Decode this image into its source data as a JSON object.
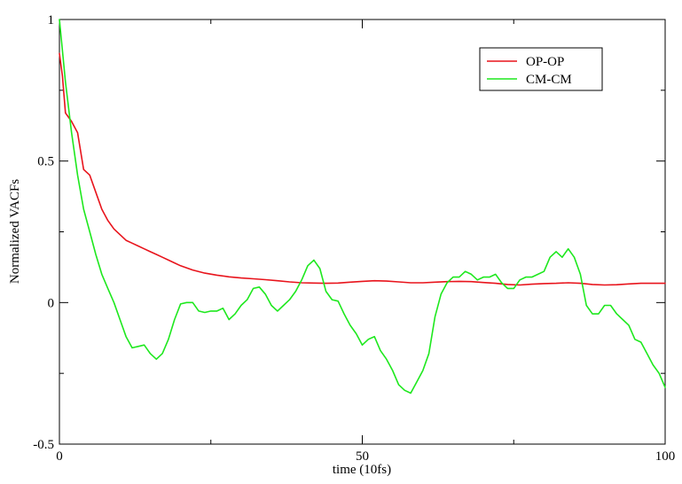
{
  "chart_data": {
    "type": "line",
    "title": "",
    "xlabel": "time (10fs)",
    "ylabel": "Normalized VACFs",
    "xlim": [
      0,
      100
    ],
    "ylim": [
      -0.5,
      1
    ],
    "xticks": [
      0,
      50,
      100
    ],
    "xtick_labels": [
      "0",
      "50",
      "100"
    ],
    "yticks": [
      -0.5,
      0,
      0.5,
      1
    ],
    "ytick_labels": [
      "-0.5",
      "0",
      "0.5",
      "1"
    ],
    "grid": false,
    "legend_position": "top-right",
    "series": [
      {
        "name": "OP-OP",
        "color": "#e8141c",
        "x": [
          0,
          0.5,
          1,
          2,
          3,
          4,
          5,
          6,
          7,
          8,
          9,
          10,
          11,
          12,
          13,
          14,
          15,
          16,
          17,
          18,
          19,
          20,
          22,
          24,
          26,
          28,
          30,
          32,
          34,
          36,
          38,
          40,
          42,
          44,
          46,
          48,
          50,
          52,
          54,
          56,
          58,
          60,
          62,
          64,
          66,
          68,
          70,
          72,
          74,
          76,
          78,
          80,
          82,
          84,
          86,
          88,
          90,
          92,
          94,
          96,
          98,
          100
        ],
        "values": [
          0.88,
          0.8,
          0.67,
          0.64,
          0.6,
          0.47,
          0.45,
          0.39,
          0.33,
          0.29,
          0.26,
          0.24,
          0.22,
          0.21,
          0.2,
          0.19,
          0.18,
          0.17,
          0.16,
          0.15,
          0.14,
          0.13,
          0.115,
          0.104,
          0.097,
          0.091,
          0.087,
          0.084,
          0.081,
          0.077,
          0.073,
          0.07,
          0.069,
          0.068,
          0.069,
          0.072,
          0.075,
          0.077,
          0.076,
          0.073,
          0.07,
          0.07,
          0.072,
          0.074,
          0.075,
          0.074,
          0.071,
          0.068,
          0.064,
          0.062,
          0.065,
          0.067,
          0.068,
          0.07,
          0.068,
          0.064,
          0.062,
          0.063,
          0.066,
          0.068,
          0.068,
          0.068
        ]
      },
      {
        "name": "CM-CM",
        "color": "#1ee81e",
        "x": [
          0,
          1,
          2,
          3,
          4,
          5,
          6,
          7,
          8,
          9,
          10,
          11,
          12,
          13,
          14,
          15,
          16,
          17,
          18,
          19,
          20,
          21,
          22,
          23,
          24,
          25,
          26,
          27,
          28,
          29,
          30,
          31,
          32,
          33,
          34,
          35,
          36,
          37,
          38,
          39,
          40,
          41,
          42,
          43,
          44,
          45,
          46,
          47,
          48,
          49,
          50,
          51,
          52,
          53,
          54,
          55,
          56,
          57,
          58,
          59,
          60,
          61,
          62,
          63,
          64,
          65,
          66,
          67,
          68,
          69,
          70,
          71,
          72,
          73,
          74,
          75,
          76,
          77,
          78,
          79,
          80,
          81,
          82,
          83,
          84,
          85,
          86,
          87,
          88,
          89,
          90,
          91,
          92,
          93,
          94,
          95,
          96,
          97,
          98,
          99,
          100
        ],
        "values": [
          1.0,
          0.78,
          0.6,
          0.45,
          0.33,
          0.25,
          0.17,
          0.1,
          0.05,
          0.0,
          -0.06,
          -0.12,
          -0.16,
          -0.155,
          -0.15,
          -0.18,
          -0.2,
          -0.18,
          -0.13,
          -0.06,
          -0.005,
          0.0,
          0.0,
          -0.03,
          -0.035,
          -0.03,
          -0.03,
          -0.02,
          -0.06,
          -0.04,
          -0.01,
          0.01,
          0.05,
          0.055,
          0.03,
          -0.01,
          -0.03,
          -0.01,
          0.01,
          0.04,
          0.08,
          0.13,
          0.15,
          0.12,
          0.04,
          0.01,
          0.005,
          -0.04,
          -0.08,
          -0.11,
          -0.15,
          -0.13,
          -0.12,
          -0.17,
          -0.2,
          -0.24,
          -0.29,
          -0.31,
          -0.32,
          -0.28,
          -0.24,
          -0.18,
          -0.05,
          0.03,
          0.07,
          0.09,
          0.09,
          0.11,
          0.1,
          0.08,
          0.09,
          0.09,
          0.1,
          0.07,
          0.05,
          0.05,
          0.08,
          0.09,
          0.09,
          0.1,
          0.11,
          0.16,
          0.18,
          0.16,
          0.19,
          0.16,
          0.1,
          -0.01,
          -0.04,
          -0.04,
          -0.01,
          -0.01,
          -0.04,
          -0.06,
          -0.08,
          -0.13,
          -0.14,
          -0.18,
          -0.22,
          -0.25,
          -0.3
        ]
      }
    ]
  }
}
